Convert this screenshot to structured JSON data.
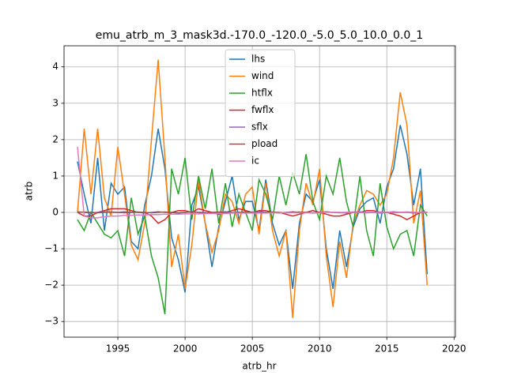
{
  "chart_data": {
    "type": "line",
    "title": "emu_atrb_m_3_mask3d.-170.0_-120.0_-5.0_5.0_10.0_0.0_1",
    "xlabel": "atrb_hr",
    "ylabel": "atrb",
    "x": [
      1992,
      1992.5,
      1993,
      1993.5,
      1994,
      1994.5,
      1995,
      1995.5,
      1996,
      1996.5,
      1997,
      1997.5,
      1998,
      1998.5,
      1999,
      1999.5,
      2000,
      2000.5,
      2001,
      2001.5,
      2002,
      2002.5,
      2003,
      2003.5,
      2004,
      2004.5,
      2005,
      2005.5,
      2006,
      2006.5,
      2007,
      2007.5,
      2008,
      2008.5,
      2009,
      2009.5,
      2010,
      2010.5,
      2011,
      2011.5,
      2012,
      2012.5,
      2013,
      2013.5,
      2014,
      2014.5,
      2015,
      2015.5,
      2016,
      2016.5,
      2017,
      2017.5,
      2018
    ],
    "series": [
      {
        "name": "lhs",
        "color": "#1f77b4",
        "values": [
          1.4,
          0.5,
          -0.3,
          1.5,
          -0.5,
          0.8,
          0.5,
          0.7,
          -0.8,
          -1.0,
          0.2,
          1.0,
          2.3,
          1.2,
          -0.7,
          -1.3,
          -2.2,
          0.2,
          0.7,
          -0.3,
          -1.5,
          -0.4,
          0.3,
          1.0,
          -0.2,
          0.3,
          0.3,
          -0.5,
          0.9,
          -0.3,
          -0.9,
          -0.5,
          -2.1,
          -0.3,
          0.5,
          0.3,
          0.9,
          -1.0,
          -2.1,
          -0.5,
          -1.5,
          -0.4,
          0.1,
          0.3,
          0.4,
          -0.3,
          0.7,
          1.2,
          2.4,
          1.6,
          0.2,
          1.2,
          -1.7
        ]
      },
      {
        "name": "wind",
        "color": "#ff7f0e",
        "values": [
          0,
          2.3,
          0.5,
          2.3,
          0.4,
          -0.1,
          1.8,
          0.5,
          -0.9,
          -1.3,
          -0.3,
          2.0,
          4.2,
          1.5,
          -1.5,
          -0.6,
          -2.1,
          -0.9,
          0.9,
          -0.3,
          -1.1,
          -0.5,
          0.5,
          0.3,
          -0.3,
          0.5,
          0.7,
          -0.6,
          0.8,
          -0.5,
          -1.2,
          -0.5,
          -2.9,
          -0.5,
          0.8,
          0.2,
          1.2,
          -1.2,
          -2.6,
          -0.8,
          -1.8,
          -0.3,
          0.2,
          0.6,
          0.5,
          0.2,
          0.5,
          1.5,
          3.3,
          2.4,
          -0.3,
          0.6,
          -2.0
        ]
      },
      {
        "name": "htflx",
        "color": "#2ca02c",
        "values": [
          -0.2,
          -0.5,
          0.0,
          -0.3,
          -0.6,
          -0.7,
          -0.5,
          -1.2,
          0.4,
          -0.6,
          -0.1,
          -1.2,
          -1.8,
          -2.8,
          1.2,
          0.5,
          1.5,
          -0.2,
          1.0,
          0.1,
          1.2,
          -0.3,
          0.8,
          -0.4,
          0.5,
          0.0,
          -0.5,
          0.9,
          0.5,
          -0.2,
          1.0,
          0.2,
          1.1,
          0.5,
          1.6,
          0.3,
          -0.2,
          1.0,
          0.5,
          1.5,
          0.3,
          -0.4,
          1.0,
          -0.5,
          -1.2,
          0.8,
          -0.4,
          -1.0,
          -0.6,
          -0.5,
          -1.2,
          0.2,
          -0.1
        ]
      },
      {
        "name": "fwflx",
        "color": "#d62728",
        "values": [
          0,
          -0.1,
          -0.1,
          0.0,
          0.05,
          0.1,
          0.1,
          0.1,
          0.05,
          0.0,
          0.0,
          -0.1,
          -0.3,
          -0.2,
          0.0,
          0.05,
          0.05,
          0.0,
          0.1,
          0.05,
          0.0,
          -0.05,
          0.0,
          0.05,
          0.1,
          0.05,
          0.0,
          0.05,
          0.05,
          0.0,
          0.0,
          -0.05,
          -0.1,
          -0.05,
          0.0,
          0.05,
          0.0,
          -0.05,
          -0.1,
          -0.1,
          -0.05,
          0.0,
          0.0,
          0.05,
          0.05,
          0.0,
          0.0,
          -0.05,
          -0.1,
          -0.2,
          -0.1,
          0.0,
          0.0
        ]
      },
      {
        "name": "sflx",
        "color": "#9467bd",
        "values": [
          0.02,
          0,
          -0.02,
          0,
          0.02,
          0,
          0,
          0.02,
          0,
          0,
          -0.02,
          0,
          0.02,
          0,
          0,
          -0.02,
          0,
          0.02,
          0,
          0,
          -0.02,
          0,
          0.02,
          0,
          0,
          -0.02,
          0,
          0.02,
          0,
          0,
          -0.02,
          0,
          0.02,
          0,
          0,
          -0.02,
          0,
          0.02,
          0,
          0,
          -0.02,
          0,
          0.02,
          0,
          0,
          -0.02,
          0,
          0.02,
          0,
          0,
          -0.02,
          0,
          0
        ]
      },
      {
        "name": "pload",
        "color": "#8c564b",
        "values": [
          0,
          0.01,
          0,
          -0.01,
          0,
          0.01,
          0,
          -0.01,
          0,
          0.01,
          0,
          -0.01,
          0,
          0.01,
          0,
          -0.01,
          0,
          0.01,
          0,
          -0.01,
          0,
          0.01,
          0,
          -0.01,
          0,
          0.01,
          0,
          -0.01,
          0,
          0.01,
          0,
          -0.01,
          0,
          0.01,
          0,
          -0.01,
          0,
          0.01,
          0,
          -0.01,
          0,
          0.01,
          0,
          -0.01,
          0,
          0.01,
          0,
          -0.01,
          0,
          0.01,
          0,
          -0.01,
          0
        ]
      },
      {
        "name": "ic",
        "color": "#e377c2",
        "values": [
          1.8,
          -0.1,
          -0.15,
          -0.15,
          -0.12,
          -0.1,
          -0.1,
          -0.08,
          -0.08,
          -0.07,
          -0.07,
          -0.06,
          -0.06,
          -0.05,
          -0.05,
          -0.05,
          -0.04,
          -0.04,
          -0.04,
          -0.03,
          -0.03,
          -0.03,
          -0.03,
          -0.02,
          -0.02,
          -0.02,
          -0.02,
          -0.02,
          -0.02,
          -0.01,
          -0.01,
          -0.01,
          -0.01,
          -0.01,
          -0.01,
          -0.01,
          -0.01,
          0,
          0,
          0,
          0,
          0,
          0,
          0,
          0,
          0,
          0,
          0,
          0,
          0,
          0,
          0,
          0
        ]
      }
    ],
    "xlim": [
      1991.0,
      2020.1
    ],
    "ylim": [
      -3.43,
      4.58
    ],
    "xticks": [
      1995,
      2000,
      2005,
      2010,
      2015,
      2020
    ],
    "yticks": [
      {
        "value": -3,
        "label": "−3"
      },
      {
        "value": -2,
        "label": "−2"
      },
      {
        "value": -1,
        "label": "−1"
      },
      0,
      1,
      2,
      3,
      4
    ],
    "grid": true,
    "legend": "upper center"
  }
}
